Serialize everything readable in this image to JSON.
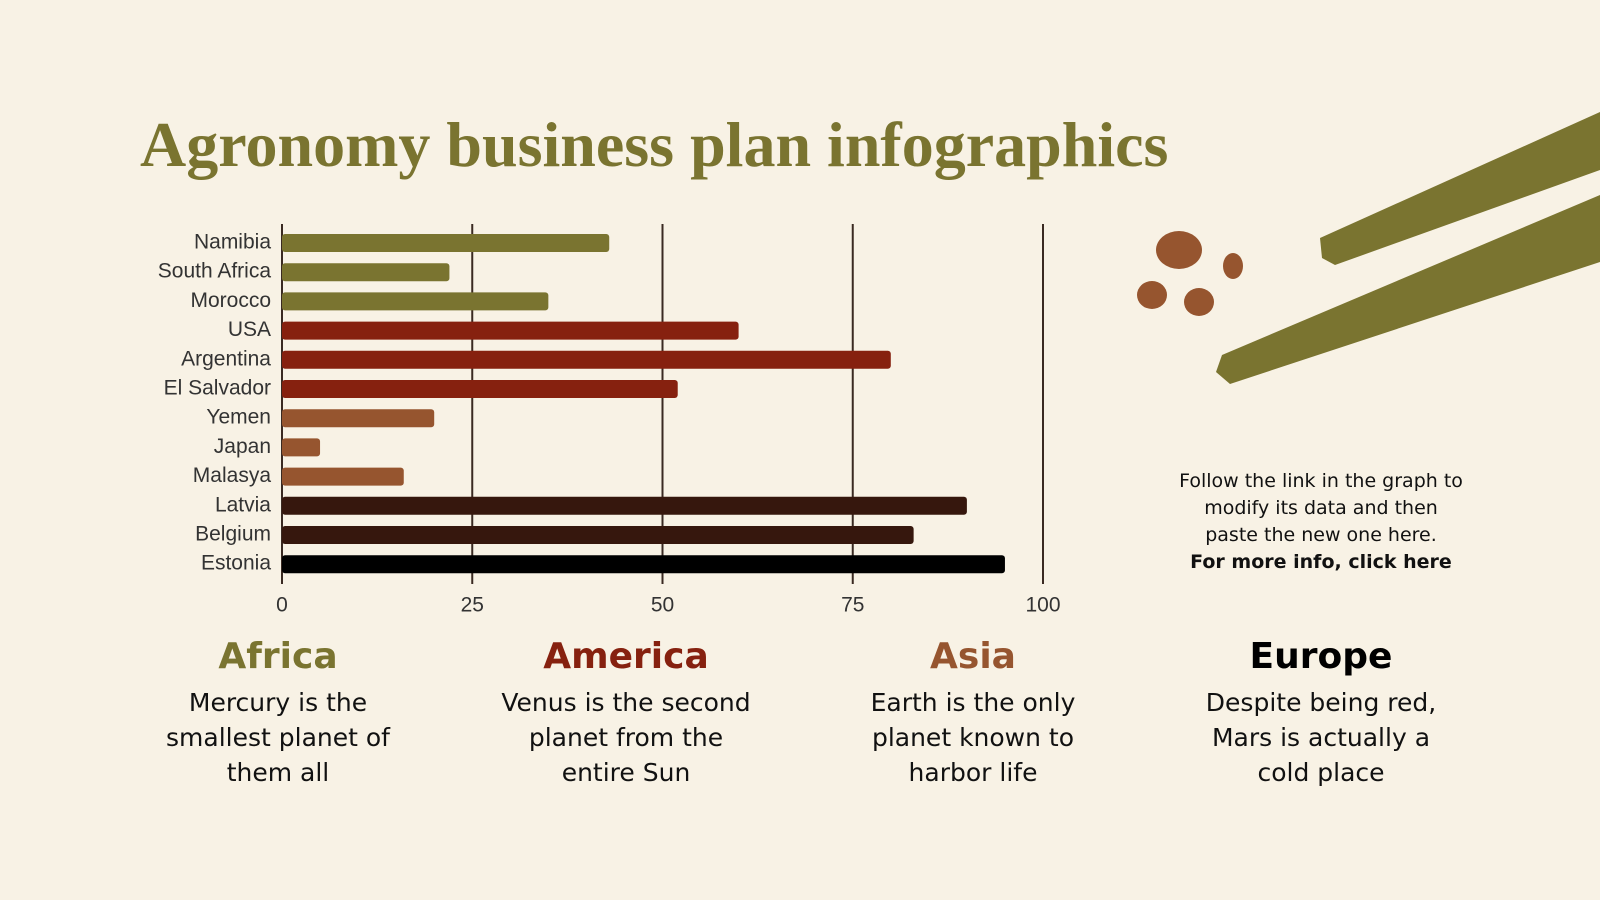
{
  "title": "Agronomy business plan infographics",
  "chart_data": {
    "type": "bar",
    "orientation": "horizontal",
    "categories": [
      "Namibia",
      "South Africa",
      "Morocco",
      "USA",
      "Argentina",
      "El Salvador",
      "Yemen",
      "Japan",
      "Malasya",
      "Latvia",
      "Belgium",
      "Estonia"
    ],
    "values": [
      43,
      22,
      35,
      60,
      80,
      52,
      20,
      5,
      16,
      90,
      83,
      95
    ],
    "colors": [
      "#7a7430",
      "#7a7430",
      "#7a7430",
      "#86210f",
      "#86210f",
      "#86210f",
      "#96552f",
      "#96552f",
      "#96552f",
      "#36170d",
      "#36170d",
      "#000000"
    ],
    "xlim": [
      0,
      100
    ],
    "xticks": [
      0,
      25,
      50,
      75,
      100
    ],
    "grid": true
  },
  "regions": [
    {
      "title": "Africa",
      "text": "Mercury is the smallest planet of them all",
      "color": "#7a7430"
    },
    {
      "title": "America",
      "text": "Venus is the second planet from the entire Sun",
      "color": "#86210f"
    },
    {
      "title": "Asia",
      "text": "Earth is the only planet known to harbor life",
      "color": "#96552f"
    },
    {
      "title": "Europe",
      "text": "Despite being red, Mars is actually a cold place",
      "color": "#000000"
    }
  ],
  "note": {
    "text": "Follow the link in the graph to modify its data and then paste the new one here.",
    "link": "For more info, click here"
  }
}
